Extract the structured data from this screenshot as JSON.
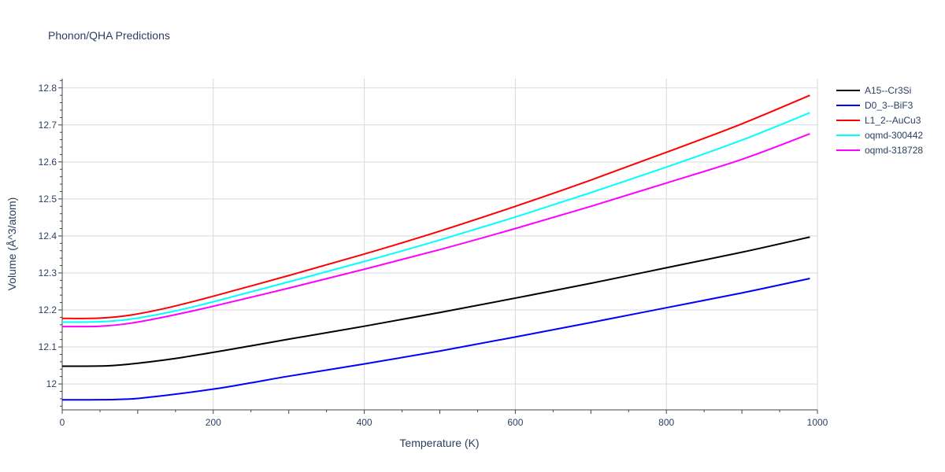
{
  "chart_data": {
    "type": "line",
    "title": "Phonon/QHA Predictions",
    "xlabel": "Temperature (K)",
    "ylabel": "Volume (Å^3/atom)",
    "xlim": [
      0,
      1000
    ],
    "ylim": [
      11.93,
      12.825
    ],
    "xticks": [
      0,
      200,
      400,
      600,
      800,
      1000
    ],
    "xtick_labels": [
      "0",
      "200",
      "400",
      "600",
      "800",
      "1000"
    ],
    "yticks": [
      12.0,
      12.1,
      12.2,
      12.3,
      12.4,
      12.5,
      12.6,
      12.7,
      12.8
    ],
    "ytick_labels": [
      "12",
      "12.1",
      "12.2",
      "12.3",
      "12.4",
      "12.5",
      "12.6",
      "12.7",
      "12.8"
    ],
    "grid": true,
    "legend_position": "top-right",
    "series": [
      {
        "name": "A15--Cr3Si",
        "color": "#000000",
        "x": [
          0,
          60,
          100,
          160,
          250,
          300,
          400,
          500,
          600,
          700,
          800,
          900,
          990
        ],
        "y": [
          12.048,
          12.049,
          12.056,
          12.072,
          12.103,
          12.121,
          12.156,
          12.193,
          12.232,
          12.272,
          12.314,
          12.356,
          12.397
        ]
      },
      {
        "name": "D0_3--BiF3",
        "color": "#0000ff",
        "x": [
          0,
          70,
          110,
          200,
          250,
          300,
          400,
          500,
          600,
          700,
          800,
          900,
          990
        ],
        "y": [
          11.957,
          11.958,
          11.963,
          11.986,
          12.003,
          12.021,
          12.054,
          12.089,
          12.127,
          12.166,
          12.206,
          12.246,
          12.285
        ]
      },
      {
        "name": "L1_2--AuCu3",
        "color": "#ff0000",
        "x": [
          0,
          50,
          90,
          140,
          200,
          300,
          400,
          500,
          600,
          700,
          800,
          900,
          990
        ],
        "y": [
          12.177,
          12.178,
          12.186,
          12.206,
          12.237,
          12.293,
          12.351,
          12.413,
          12.48,
          12.551,
          12.626,
          12.703,
          12.78
        ]
      },
      {
        "name": "oqmd-300442",
        "color": "#00ffff",
        "x": [
          0,
          50,
          90,
          140,
          200,
          300,
          400,
          500,
          600,
          700,
          800,
          900,
          990
        ],
        "y": [
          12.167,
          12.168,
          12.175,
          12.193,
          12.222,
          12.276,
          12.331,
          12.389,
          12.451,
          12.517,
          12.586,
          12.659,
          12.733
        ]
      },
      {
        "name": "oqmd-318728",
        "color": "#ff00ff",
        "x": [
          0,
          50,
          90,
          140,
          200,
          300,
          400,
          500,
          600,
          700,
          800,
          900,
          990
        ],
        "y": [
          12.155,
          12.156,
          12.164,
          12.183,
          12.21,
          12.259,
          12.31,
          12.363,
          12.42,
          12.48,
          12.543,
          12.607,
          12.676
        ]
      }
    ]
  }
}
